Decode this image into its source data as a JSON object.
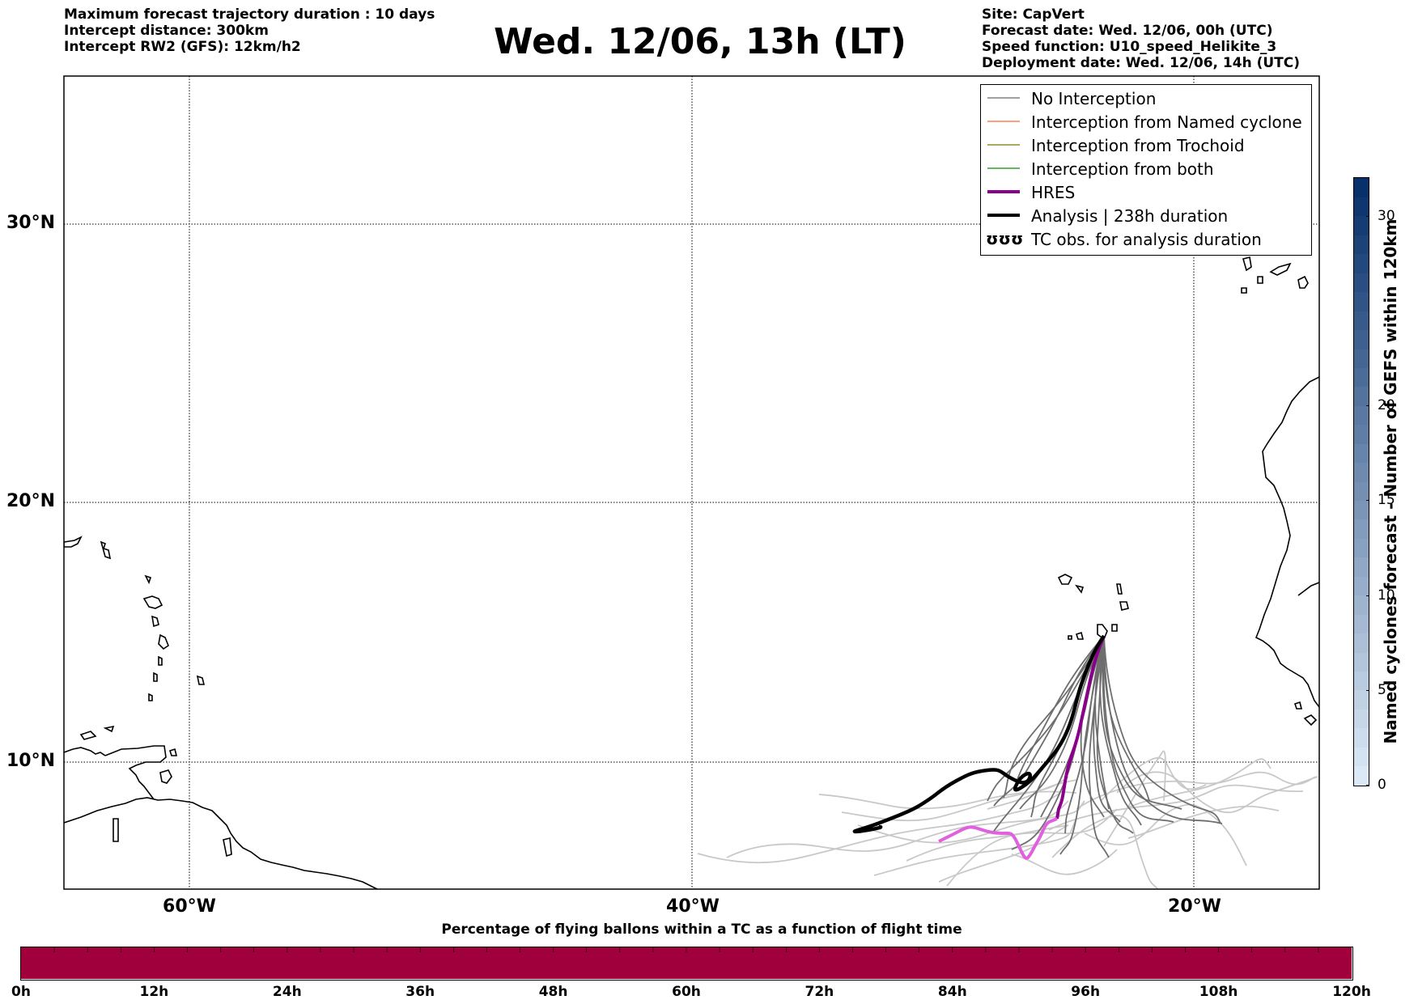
{
  "header": {
    "left_lines": [
      "Maximum forecast trajectory duration : 10 days",
      "Intercept distance: 300km",
      "Intercept RW2 (GFS):  12km/h2"
    ],
    "title": "Wed. 12/06, 13h (LT)",
    "right_lines": [
      "Site: CapVert",
      "Forecast date: Wed. 12/06, 00h (UTC)",
      "Speed function: U10_speed_Helikite_3",
      "Deployment date: Wed. 12/06, 14h (UTC)"
    ]
  },
  "map": {
    "lon_range": [
      -65,
      -15
    ],
    "lat_range": [
      5.4,
      34.7
    ],
    "lat_labels": [
      "30°N",
      "20°N",
      "10°N"
    ],
    "lon_labels": [
      "60°W",
      "40°W",
      "20°W"
    ],
    "colors": {
      "coast": "#000000",
      "no_interception_light": "#c8c8c8",
      "no_interception_dark": "#6e6e6e",
      "hres_before": "#e060e0",
      "hres_after": "#8b008b",
      "analysis": "#000000"
    }
  },
  "legend": {
    "items": [
      {
        "label": "No Interception",
        "color": "#808080",
        "style": "thin"
      },
      {
        "label": "Interception from Named cyclone",
        "color": "#ff7f50",
        "style": "thin"
      },
      {
        "label": "Interception from Trochoid",
        "color": "#8b8b2a",
        "style": "thin"
      },
      {
        "label": "Interception from both",
        "color": "#2ca02c",
        "style": "thin"
      },
      {
        "label": "HRES",
        "color": "#8b008b",
        "style": "thick"
      },
      {
        "label": "Analysis | 238h duration",
        "color": "#000000",
        "style": "thick"
      },
      {
        "label": "TC obs. for analysis duration",
        "color": "#000000",
        "style": "symbol",
        "symbol": "ʊʊʊ"
      }
    ]
  },
  "colorbar_right": {
    "label": "Named cyclones forecast - Number of GEFS within 120km",
    "ticks": [
      "0",
      "5",
      "10",
      "15",
      "20",
      "30"
    ],
    "tick_values": [
      0,
      5,
      10,
      15,
      20,
      30
    ],
    "range": [
      0,
      32
    ],
    "color_low": "#dbe9f6",
    "color_high": "#08306b"
  },
  "colorbar_bottom": {
    "title": "Percentage of flying ballons within a TC as a function of flight time",
    "ticks": [
      "0h",
      "12h",
      "24h",
      "36h",
      "48h",
      "60h",
      "72h",
      "84h",
      "96h",
      "108h",
      "120h"
    ],
    "color": "#a0003c"
  }
}
